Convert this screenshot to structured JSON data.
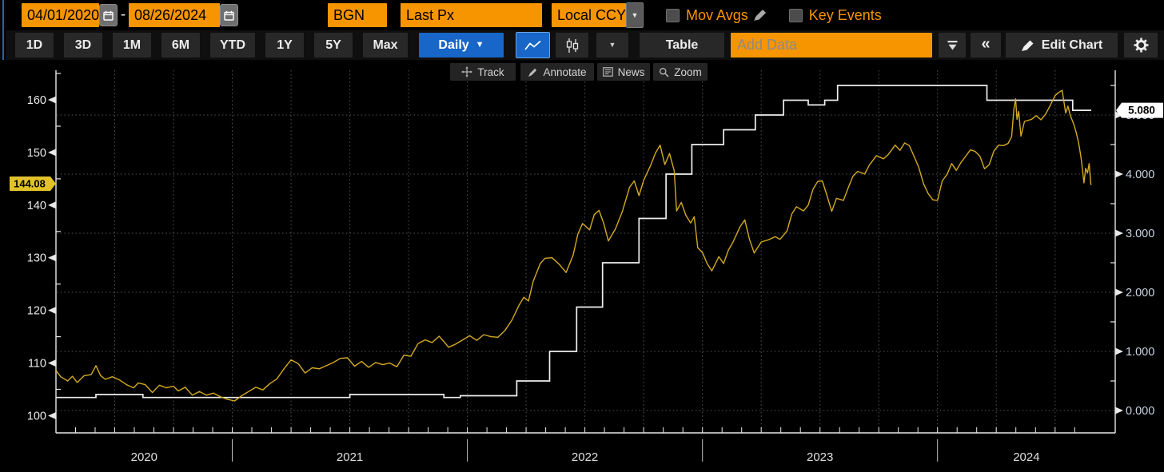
{
  "header": {
    "date_from": "04/01/2020",
    "date_separator": "-",
    "date_to": "08/26/2024",
    "pricing_source": "BGN",
    "field": "Last Px",
    "currency": "Local CCY",
    "mov_avgs": "Mov Avgs",
    "key_events": "Key Events"
  },
  "toolbar": {
    "periods": [
      "1D",
      "3D",
      "1M",
      "6M",
      "YTD",
      "1Y",
      "5Y",
      "Max"
    ],
    "frequency": "Daily",
    "table": "Table",
    "add_data_placeholder": "Add Data",
    "edit_chart": "Edit Chart"
  },
  "chart_tools": {
    "track": "Track",
    "annotate": "Annotate",
    "news": "News",
    "zoom": "Zoom"
  },
  "colors": {
    "accent_orange": "#f79500",
    "accent_blue": "#1866c8",
    "price_line": "#d4aa20",
    "rate_line": "#efefef",
    "price_tag_bg": "#e2c226",
    "rate_tag_bg": "#ffffff",
    "grid": "#555555",
    "axis": "#e8e8e8"
  },
  "chart_data": {
    "type": "line",
    "title": "",
    "x_axis": {
      "start_year_fraction": 2020.25,
      "end_year_fraction": 2024.654,
      "year_labels": [
        "2020",
        "2021",
        "2022",
        "2023",
        "2024"
      ],
      "year_starts": [
        2021,
        2022,
        2023,
        2024
      ],
      "grid": "quarterly-dotted"
    },
    "left_axis": {
      "tick_labels": [
        "160",
        "150",
        "140",
        "130",
        "120",
        "110",
        "100"
      ],
      "tick_values": [
        160,
        150,
        140,
        130,
        120,
        110,
        100
      ],
      "minor_values": [
        165,
        155,
        145,
        135,
        125,
        115,
        105
      ],
      "last_price_label": "144.08",
      "last_price_value": 144.08
    },
    "right_axis": {
      "tick_labels": [
        "5.000",
        "4.000",
        "3.000",
        "2.000",
        "1.000",
        "0.000"
      ],
      "tick_values": [
        5,
        4,
        3,
        2,
        1,
        0
      ],
      "minor_values": [
        5.5,
        4.5,
        3.5,
        2.5,
        1.5,
        0.5
      ],
      "last_price_label": "5.080",
      "last_price_value": 5.08
    },
    "series": [
      {
        "name": "price-series",
        "axis": "left",
        "type": "line",
        "color": "#d4aa20",
        "points": [
          [
            2020.25,
            108.6
          ],
          [
            2020.27,
            107.4
          ],
          [
            2020.3,
            106.6
          ],
          [
            2020.32,
            107.5
          ],
          [
            2020.34,
            106.3
          ],
          [
            2020.37,
            107.6
          ],
          [
            2020.4,
            107.8
          ],
          [
            2020.42,
            109.5
          ],
          [
            2020.44,
            107.6
          ],
          [
            2020.46,
            106.9
          ],
          [
            2020.49,
            107.4
          ],
          [
            2020.52,
            106.8
          ],
          [
            2020.55,
            105.9
          ],
          [
            2020.58,
            105.3
          ],
          [
            2020.6,
            106.2
          ],
          [
            2020.63,
            105.9
          ],
          [
            2020.66,
            104.4
          ],
          [
            2020.69,
            105.8
          ],
          [
            2020.72,
            105.3
          ],
          [
            2020.75,
            105.6
          ],
          [
            2020.77,
            104.7
          ],
          [
            2020.8,
            105.4
          ],
          [
            2020.83,
            103.9
          ],
          [
            2020.86,
            104.6
          ],
          [
            2020.89,
            103.9
          ],
          [
            2020.92,
            104.3
          ],
          [
            2020.95,
            103.6
          ],
          [
            2020.98,
            103.1
          ],
          [
            2021.01,
            102.8
          ],
          [
            2021.04,
            103.8
          ],
          [
            2021.07,
            104.6
          ],
          [
            2021.1,
            105.4
          ],
          [
            2021.13,
            104.9
          ],
          [
            2021.16,
            106.1
          ],
          [
            2021.19,
            107.0
          ],
          [
            2021.22,
            108.9
          ],
          [
            2021.25,
            110.6
          ],
          [
            2021.28,
            109.9
          ],
          [
            2021.31,
            108.1
          ],
          [
            2021.34,
            109.1
          ],
          [
            2021.37,
            108.9
          ],
          [
            2021.4,
            109.5
          ],
          [
            2021.43,
            110.1
          ],
          [
            2021.46,
            110.9
          ],
          [
            2021.49,
            111.0
          ],
          [
            2021.52,
            109.4
          ],
          [
            2021.55,
            110.3
          ],
          [
            2021.58,
            109.2
          ],
          [
            2021.61,
            110.1
          ],
          [
            2021.64,
            109.7
          ],
          [
            2021.67,
            110.0
          ],
          [
            2021.7,
            109.3
          ],
          [
            2021.73,
            111.5
          ],
          [
            2021.76,
            111.3
          ],
          [
            2021.79,
            113.7
          ],
          [
            2021.82,
            114.4
          ],
          [
            2021.85,
            113.9
          ],
          [
            2021.88,
            115.1
          ],
          [
            2021.9,
            114.1
          ],
          [
            2021.92,
            113.0
          ],
          [
            2021.95,
            113.6
          ],
          [
            2021.98,
            114.4
          ],
          [
            2022.01,
            115.2
          ],
          [
            2022.04,
            114.3
          ],
          [
            2022.07,
            115.4
          ],
          [
            2022.1,
            115.0
          ],
          [
            2022.13,
            114.9
          ],
          [
            2022.16,
            116.2
          ],
          [
            2022.19,
            118.2
          ],
          [
            2022.22,
            121.0
          ],
          [
            2022.24,
            122.5
          ],
          [
            2022.26,
            121.8
          ],
          [
            2022.28,
            125.5
          ],
          [
            2022.31,
            128.9
          ],
          [
            2022.33,
            129.9
          ],
          [
            2022.36,
            130.0
          ],
          [
            2022.39,
            128.8
          ],
          [
            2022.42,
            127.2
          ],
          [
            2022.45,
            130.5
          ],
          [
            2022.47,
            134.5
          ],
          [
            2022.49,
            136.5
          ],
          [
            2022.52,
            135.3
          ],
          [
            2022.54,
            138.2
          ],
          [
            2022.56,
            139.0
          ],
          [
            2022.58,
            136.5
          ],
          [
            2022.6,
            133.2
          ],
          [
            2022.63,
            135.5
          ],
          [
            2022.66,
            138.9
          ],
          [
            2022.69,
            143.4
          ],
          [
            2022.71,
            144.6
          ],
          [
            2022.73,
            141.8
          ],
          [
            2022.75,
            144.7
          ],
          [
            2022.78,
            147.6
          ],
          [
            2022.8,
            149.9
          ],
          [
            2022.82,
            151.4
          ],
          [
            2022.84,
            147.7
          ],
          [
            2022.86,
            149.8
          ],
          [
            2022.88,
            146.5
          ],
          [
            2022.89,
            138.9
          ],
          [
            2022.91,
            140.5
          ],
          [
            2022.93,
            138.0
          ],
          [
            2022.95,
            136.6
          ],
          [
            2022.965,
            137.8
          ],
          [
            2022.98,
            131.9
          ],
          [
            2023.0,
            131.0
          ],
          [
            2023.02,
            128.9
          ],
          [
            2023.04,
            127.5
          ],
          [
            2023.07,
            130.2
          ],
          [
            2023.09,
            128.9
          ],
          [
            2023.11,
            131.4
          ],
          [
            2023.13,
            133.0
          ],
          [
            2023.16,
            135.9
          ],
          [
            2023.18,
            137.2
          ],
          [
            2023.2,
            133.5
          ],
          [
            2023.22,
            130.9
          ],
          [
            2023.25,
            133.0
          ],
          [
            2023.28,
            133.4
          ],
          [
            2023.31,
            134.0
          ],
          [
            2023.33,
            133.5
          ],
          [
            2023.36,
            135.1
          ],
          [
            2023.38,
            138.3
          ],
          [
            2023.4,
            139.7
          ],
          [
            2023.43,
            138.9
          ],
          [
            2023.45,
            140.0
          ],
          [
            2023.47,
            143.0
          ],
          [
            2023.49,
            144.5
          ],
          [
            2023.51,
            144.6
          ],
          [
            2023.53,
            141.8
          ],
          [
            2023.55,
            138.8
          ],
          [
            2023.57,
            141.3
          ],
          [
            2023.6,
            140.9
          ],
          [
            2023.62,
            143.3
          ],
          [
            2023.64,
            145.5
          ],
          [
            2023.66,
            146.4
          ],
          [
            2023.69,
            145.9
          ],
          [
            2023.71,
            147.6
          ],
          [
            2023.74,
            149.4
          ],
          [
            2023.77,
            148.8
          ],
          [
            2023.79,
            149.6
          ],
          [
            2023.82,
            151.4
          ],
          [
            2023.84,
            150.4
          ],
          [
            2023.86,
            151.8
          ],
          [
            2023.88,
            151.3
          ],
          [
            2023.9,
            149.3
          ],
          [
            2023.92,
            147.2
          ],
          [
            2023.94,
            144.1
          ],
          [
            2023.96,
            142.2
          ],
          [
            2023.98,
            141.0
          ],
          [
            2024.0,
            140.9
          ],
          [
            2024.02,
            144.6
          ],
          [
            2024.04,
            145.8
          ],
          [
            2024.06,
            147.9
          ],
          [
            2024.08,
            146.6
          ],
          [
            2024.1,
            148.1
          ],
          [
            2024.12,
            149.3
          ],
          [
            2024.14,
            150.5
          ],
          [
            2024.16,
            150.2
          ],
          [
            2024.18,
            149.3
          ],
          [
            2024.2,
            146.9
          ],
          [
            2024.22,
            147.7
          ],
          [
            2024.24,
            150.3
          ],
          [
            2024.26,
            151.4
          ],
          [
            2024.28,
            151.3
          ],
          [
            2024.3,
            151.7
          ],
          [
            2024.315,
            153.0
          ],
          [
            2024.325,
            158.3
          ],
          [
            2024.332,
            160.2
          ],
          [
            2024.338,
            156.3
          ],
          [
            2024.345,
            157.8
          ],
          [
            2024.355,
            153.1
          ],
          [
            2024.37,
            155.9
          ],
          [
            2024.4,
            156.3
          ],
          [
            2024.42,
            157.0
          ],
          [
            2024.44,
            156.2
          ],
          [
            2024.46,
            157.3
          ],
          [
            2024.48,
            159.0
          ],
          [
            2024.5,
            160.8
          ],
          [
            2024.515,
            161.4
          ],
          [
            2024.53,
            161.8
          ],
          [
            2024.545,
            157.5
          ],
          [
            2024.555,
            158.8
          ],
          [
            2024.565,
            157.0
          ],
          [
            2024.58,
            155.3
          ],
          [
            2024.59,
            153.8
          ],
          [
            2024.6,
            151.8
          ],
          [
            2024.607,
            150.0
          ],
          [
            2024.612,
            148.5
          ],
          [
            2024.617,
            146.4
          ],
          [
            2024.623,
            144.2
          ],
          [
            2024.63,
            147.0
          ],
          [
            2024.638,
            146.1
          ],
          [
            2024.645,
            147.9
          ],
          [
            2024.65,
            145.1
          ],
          [
            2024.652,
            143.9
          ],
          [
            2024.654,
            144.08
          ]
        ]
      },
      {
        "name": "rate-series",
        "axis": "right",
        "type": "step",
        "color": "#efefef",
        "points": [
          [
            2020.25,
            0.22
          ],
          [
            2020.42,
            0.27
          ],
          [
            2020.62,
            0.22
          ],
          [
            2021.5,
            0.27
          ],
          [
            2021.9,
            0.22
          ],
          [
            2021.97,
            0.25
          ],
          [
            2022.21,
            0.5
          ],
          [
            2022.35,
            1.0
          ],
          [
            2022.465,
            1.75
          ],
          [
            2022.575,
            2.5
          ],
          [
            2022.73,
            3.25
          ],
          [
            2022.845,
            4.0
          ],
          [
            2022.955,
            4.5
          ],
          [
            2023.09,
            4.75
          ],
          [
            2023.225,
            5.0
          ],
          [
            2023.345,
            5.25
          ],
          [
            2023.45,
            5.17
          ],
          [
            2023.52,
            5.25
          ],
          [
            2023.575,
            5.5
          ],
          [
            2024.21,
            5.25
          ],
          [
            2024.575,
            5.08
          ]
        ]
      }
    ]
  }
}
